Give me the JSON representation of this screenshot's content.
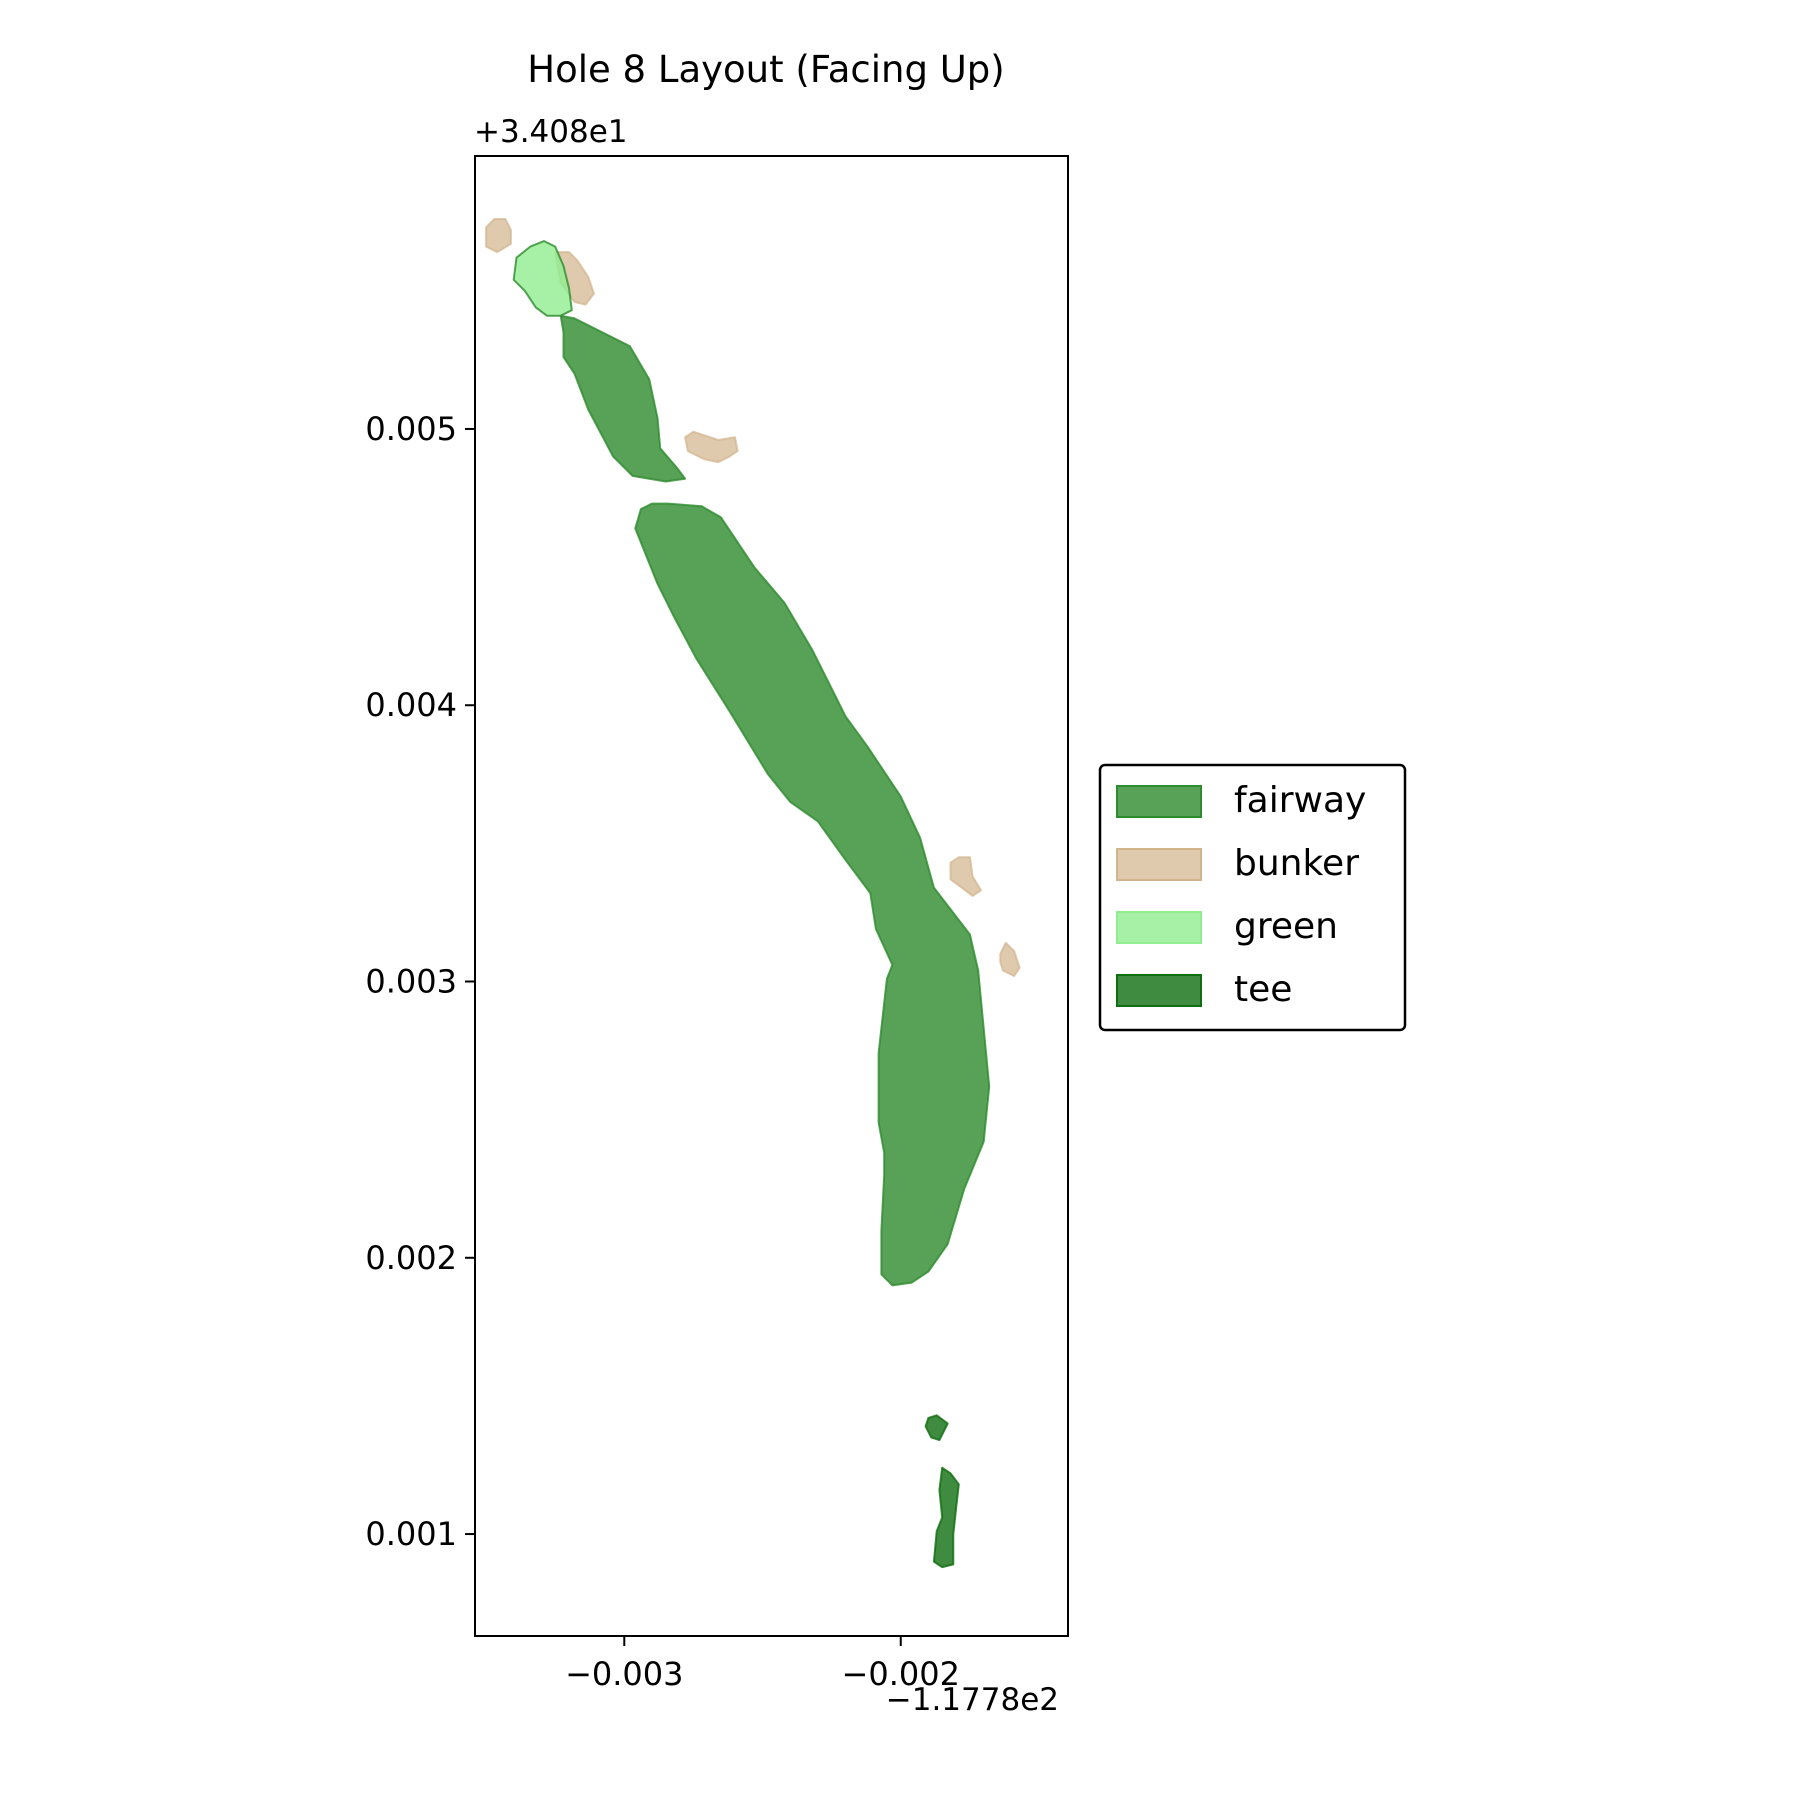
{
  "chart_data": {
    "type": "area",
    "title": "Hole 8 Layout (Facing Up)",
    "x_offset_label": "−1.1778e2",
    "y_offset_label": "+3.408e1",
    "xlim": [
      -0.00354,
      -0.001395
    ],
    "ylim": [
      0.000631,
      0.005988
    ],
    "x_ticks": [
      -0.003,
      -0.002
    ],
    "x_tick_labels": [
      "−0.003",
      "−0.002"
    ],
    "y_ticks": [
      0.001,
      0.002,
      0.003,
      0.004,
      0.005
    ],
    "y_tick_labels": [
      "0.001",
      "0.002",
      "0.003",
      "0.004",
      "0.005"
    ],
    "grid": false,
    "legend_position": "center-right outside plot",
    "series": [
      {
        "name": "fairway",
        "color": "#2e8b2e",
        "edge": "#2e8b2e",
        "alpha": 0.8,
        "polygons": [
          [
            [
              -0.00323,
              0.00541
            ],
            [
              -0.00318,
              0.0054
            ],
            [
              -0.00298,
              0.0053
            ],
            [
              -0.00291,
              0.00518
            ],
            [
              -0.00288,
              0.00504
            ],
            [
              -0.00287,
              0.00493
            ],
            [
              -0.00281,
              0.00486
            ],
            [
              -0.00278,
              0.00482
            ],
            [
              -0.00285,
              0.00481
            ],
            [
              -0.00297,
              0.00483
            ],
            [
              -0.00304,
              0.0049
            ],
            [
              -0.00313,
              0.00507
            ],
            [
              -0.00318,
              0.0052
            ],
            [
              -0.00322,
              0.00526
            ],
            [
              -0.00322,
              0.00535
            ]
          ],
          [
            [
              -0.0029,
              0.00473
            ],
            [
              -0.00284,
              0.00473
            ],
            [
              -0.00272,
              0.00472
            ],
            [
              -0.00265,
              0.00468
            ],
            [
              -0.00253,
              0.0045
            ],
            [
              -0.00242,
              0.00437
            ],
            [
              -0.00232,
              0.0042
            ],
            [
              -0.00226,
              0.00408
            ],
            [
              -0.0022,
              0.00396
            ],
            [
              -0.00212,
              0.00385
            ],
            [
              -0.002,
              0.00367
            ],
            [
              -0.00193,
              0.00352
            ],
            [
              -0.00188,
              0.00334
            ],
            [
              -0.00175,
              0.00317
            ],
            [
              -0.00172,
              0.00304
            ],
            [
              -0.0017,
              0.00283
            ],
            [
              -0.00168,
              0.00262
            ],
            [
              -0.0017,
              0.00242
            ],
            [
              -0.00177,
              0.00225
            ],
            [
              -0.00183,
              0.00205
            ],
            [
              -0.0019,
              0.00195
            ],
            [
              -0.00196,
              0.00191
            ],
            [
              -0.00203,
              0.0019
            ],
            [
              -0.00207,
              0.00194
            ],
            [
              -0.00207,
              0.0021
            ],
            [
              -0.00206,
              0.0023
            ],
            [
              -0.00206,
              0.00238
            ],
            [
              -0.00208,
              0.00249
            ],
            [
              -0.00208,
              0.00274
            ],
            [
              -0.00205,
              0.00301
            ],
            [
              -0.00203,
              0.00306
            ],
            [
              -0.00209,
              0.00319
            ],
            [
              -0.00211,
              0.00332
            ],
            [
              -0.0022,
              0.00344
            ],
            [
              -0.0023,
              0.00358
            ],
            [
              -0.0024,
              0.00365
            ],
            [
              -0.00248,
              0.00375
            ],
            [
              -0.00262,
              0.00398
            ],
            [
              -0.00274,
              0.00417
            ],
            [
              -0.00282,
              0.00432
            ],
            [
              -0.00288,
              0.00444
            ],
            [
              -0.00296,
              0.00464
            ],
            [
              -0.00294,
              0.00471
            ]
          ]
        ]
      },
      {
        "name": "bunker",
        "color": "#d2b48c",
        "edge": "#d2b48c",
        "alpha": 0.7,
        "polygons": [
          [
            [
              -0.0035,
              0.00573
            ],
            [
              -0.00347,
              0.00576
            ],
            [
              -0.00343,
              0.00576
            ],
            [
              -0.00341,
              0.00572
            ],
            [
              -0.00341,
              0.00567
            ],
            [
              -0.00346,
              0.00564
            ],
            [
              -0.0035,
              0.00566
            ]
          ],
          [
            [
              -0.00325,
              0.00564
            ],
            [
              -0.0032,
              0.00564
            ],
            [
              -0.00317,
              0.00561
            ],
            [
              -0.00313,
              0.00555
            ],
            [
              -0.00311,
              0.00549
            ],
            [
              -0.00314,
              0.00545
            ],
            [
              -0.00318,
              0.00546
            ],
            [
              -0.00323,
              0.00553
            ]
          ],
          [
            [
              -0.00278,
              0.00497
            ],
            [
              -0.00275,
              0.00499
            ],
            [
              -0.00266,
              0.00496
            ],
            [
              -0.0026,
              0.00497
            ],
            [
              -0.00259,
              0.00492
            ],
            [
              -0.00262,
              0.0049
            ],
            [
              -0.00266,
              0.00488
            ],
            [
              -0.00271,
              0.00489
            ],
            [
              -0.00277,
              0.00492
            ]
          ],
          [
            [
              -0.00182,
              0.00343
            ],
            [
              -0.00179,
              0.00345
            ],
            [
              -0.00175,
              0.00345
            ],
            [
              -0.00174,
              0.00338
            ],
            [
              -0.00171,
              0.00333
            ],
            [
              -0.00174,
              0.00331
            ],
            [
              -0.00178,
              0.00334
            ],
            [
              -0.00182,
              0.00337
            ]
          ],
          [
            [
              -0.00164,
              0.0031
            ],
            [
              -0.00162,
              0.00314
            ],
            [
              -0.00159,
              0.00311
            ],
            [
              -0.00157,
              0.00305
            ],
            [
              -0.00159,
              0.00302
            ],
            [
              -0.00163,
              0.00304
            ],
            [
              -0.00164,
              0.00307
            ]
          ]
        ]
      },
      {
        "name": "green",
        "color": "#90ee90",
        "edge": "#2e8b2e",
        "alpha": 0.8,
        "polygons": [
          [
            [
              -0.00339,
              0.00562
            ],
            [
              -0.00334,
              0.00566
            ],
            [
              -0.00329,
              0.00568
            ],
            [
              -0.00325,
              0.00566
            ],
            [
              -0.00322,
              0.00559
            ],
            [
              -0.0032,
              0.00551
            ],
            [
              -0.00319,
              0.00543
            ],
            [
              -0.00323,
              0.00541
            ],
            [
              -0.00328,
              0.00541
            ],
            [
              -0.00332,
              0.00544
            ],
            [
              -0.00336,
              0.0055
            ],
            [
              -0.0034,
              0.00554
            ]
          ]
        ]
      },
      {
        "name": "tee",
        "color": "#0f6e0f",
        "edge": "#0f6e0f",
        "alpha": 0.8,
        "polygons": [
          [
            [
              -0.0019,
              0.00142
            ],
            [
              -0.00187,
              0.00143
            ],
            [
              -0.00183,
              0.0014
            ],
            [
              -0.00186,
              0.00134
            ],
            [
              -0.00189,
              0.00135
            ],
            [
              -0.00191,
              0.00139
            ]
          ],
          [
            [
              -0.00185,
              0.00124
            ],
            [
              -0.00182,
              0.00122
            ],
            [
              -0.00179,
              0.00118
            ],
            [
              -0.0018,
              0.00109
            ],
            [
              -0.00181,
              0.001
            ],
            [
              -0.00181,
              0.00089
            ],
            [
              -0.00185,
              0.00088
            ],
            [
              -0.00188,
              0.0009
            ],
            [
              -0.00187,
              0.00101
            ],
            [
              -0.00185,
              0.00106
            ],
            [
              -0.00186,
              0.00116
            ]
          ]
        ]
      }
    ]
  }
}
